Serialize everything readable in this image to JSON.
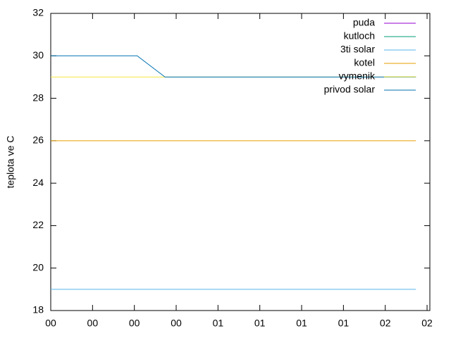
{
  "chart_data": {
    "type": "line",
    "y_label": "teplota ve C",
    "x": [
      0,
      31,
      41,
      131
    ],
    "xlim": [
      0,
      136
    ],
    "xticks": [
      {
        "value": 0,
        "label": "00"
      },
      {
        "value": 15,
        "label": "00"
      },
      {
        "value": 30,
        "label": "00"
      },
      {
        "value": 45,
        "label": "00"
      },
      {
        "value": 60,
        "label": "01"
      },
      {
        "value": 75,
        "label": "01"
      },
      {
        "value": 90,
        "label": "01"
      },
      {
        "value": 105,
        "label": "01"
      },
      {
        "value": 120,
        "label": "02"
      },
      {
        "value": 135,
        "label": "02"
      }
    ],
    "ylim": [
      18,
      32
    ],
    "yticks": [
      18,
      20,
      22,
      24,
      26,
      28,
      30,
      32
    ],
    "legend": "top-right",
    "series": [
      {
        "name": "puda",
        "color": "#9400d3",
        "values": [
          null,
          null,
          null,
          null
        ]
      },
      {
        "name": "kutloch",
        "color": "#009e73",
        "values": [
          null,
          null,
          null,
          null
        ]
      },
      {
        "name": "3ti solar",
        "color": "#56b4e9",
        "values": [
          19,
          19,
          19,
          19
        ]
      },
      {
        "name": "kotel",
        "color": "#e69f00",
        "values": [
          26,
          26,
          26,
          26
        ]
      },
      {
        "name": "vymenik",
        "color": "#f0e442",
        "values": [
          29,
          29,
          29,
          29
        ]
      },
      {
        "name": "privod solar",
        "color": "#0072b2",
        "values": [
          30,
          30,
          29,
          29
        ]
      }
    ]
  }
}
